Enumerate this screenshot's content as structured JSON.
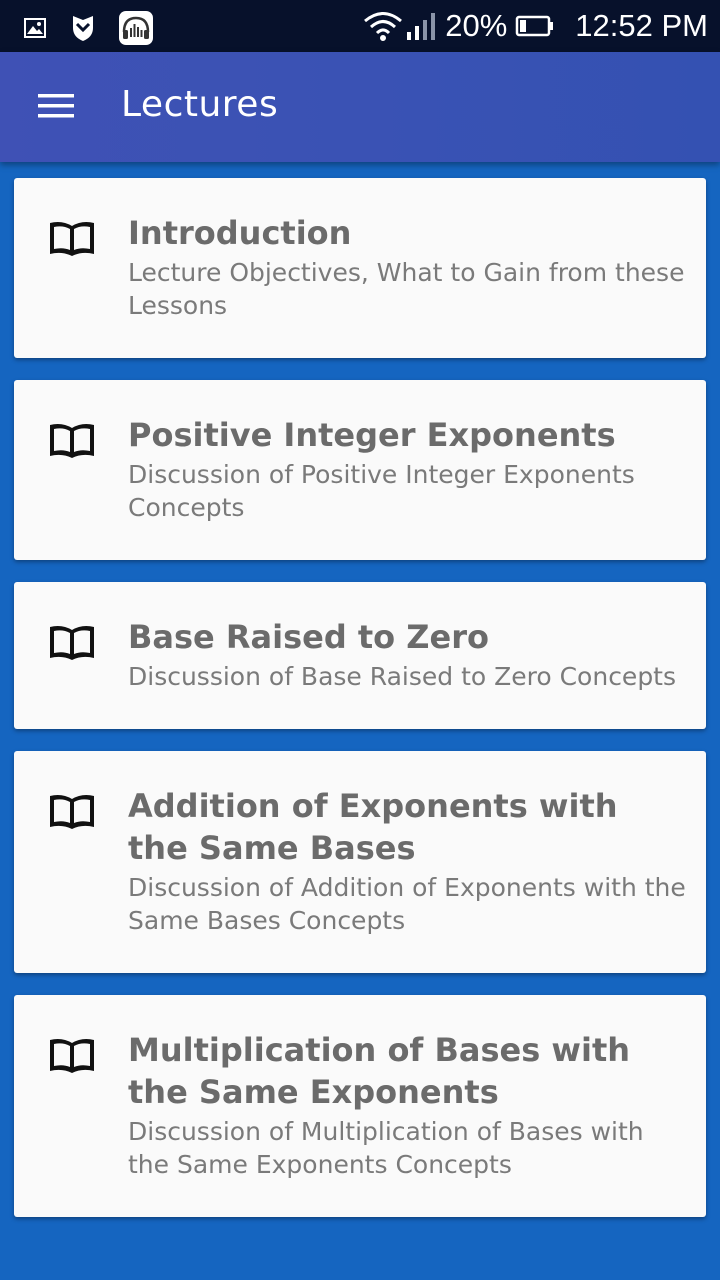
{
  "status_bar": {
    "icons_left": [
      "gallery-icon",
      "shield-icon",
      "audio-app-icon"
    ],
    "wifi": "wifi-icon",
    "signal": "signal-icon",
    "battery_percent": "20%",
    "time": "12:52 PM"
  },
  "app_bar": {
    "menu_icon": "hamburger-menu-icon",
    "title": "Lectures",
    "color": "#3f51b5"
  },
  "lectures": [
    {
      "title": "Introduction",
      "subtitle": "Lecture Objectives, What to Gain from these Lessons",
      "icon": "book-icon"
    },
    {
      "title": "Positive Integer Exponents",
      "subtitle": "Discussion of Positive Integer Exponents Concepts",
      "icon": "book-icon"
    },
    {
      "title": "Base Raised to Zero",
      "subtitle": "Discussion of Base Raised to Zero Concepts",
      "icon": "book-icon"
    },
    {
      "title": "Addition of Exponents with the Same Bases",
      "subtitle": "Discussion of Addition of Exponents with the Same Bases Concepts",
      "icon": "book-icon"
    },
    {
      "title": "Multiplication of Bases with the Same Exponents",
      "subtitle": "Discussion of Multiplication of Bases with the Same Exponents Concepts",
      "icon": "book-icon"
    }
  ],
  "colors": {
    "background": "#1565c0",
    "card": "#fafafa",
    "text": "#6b6b6b"
  }
}
